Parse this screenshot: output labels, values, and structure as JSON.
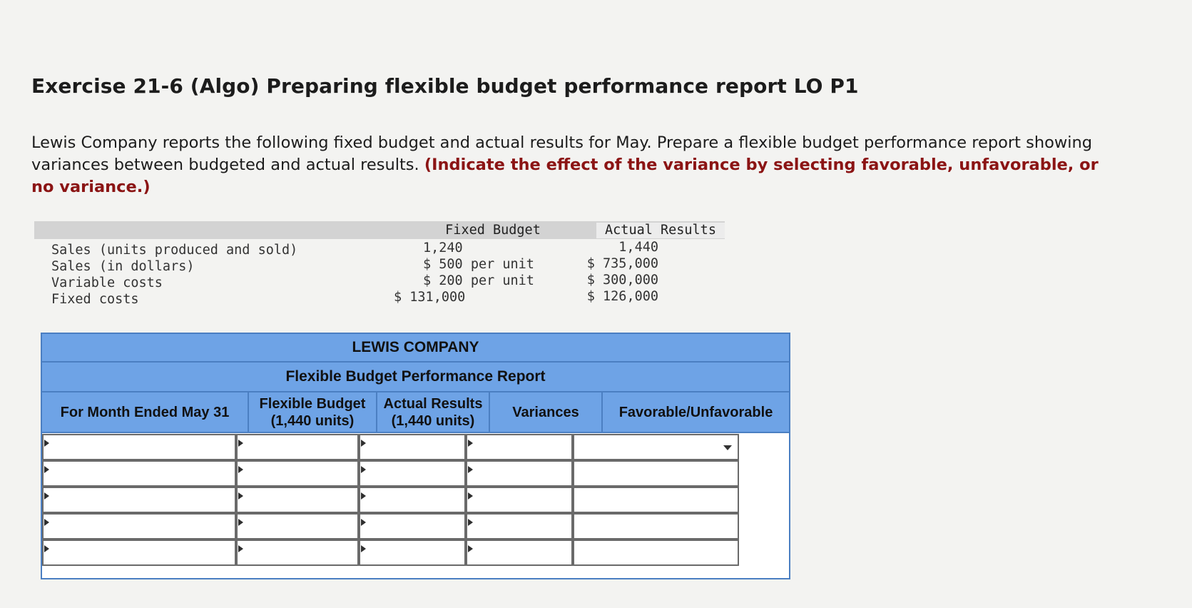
{
  "title": "Exercise 21-6 (Algo) Preparing flexible budget performance report LO P1",
  "instructions": {
    "text": "Lewis Company reports the following fixed budget and actual results for May. Prepare a flexible budget performance report showing variances between budgeted and actual results. ",
    "emphasis": "(Indicate the effect of the variance by selecting favorable, unfavorable, or no variance.)"
  },
  "given": {
    "headers": {
      "fixed": "Fixed Budget",
      "actual": "Actual Results"
    },
    "rows": [
      {
        "label": "Sales (units produced and sold)",
        "fixed": "1,240",
        "actual": "1,440"
      },
      {
        "label": "Sales (in dollars)",
        "fixed": "$ 500 per unit",
        "actual": "$ 735,000"
      },
      {
        "label": "Variable costs",
        "fixed": "$ 200 per unit",
        "actual": "$ 300,000"
      },
      {
        "label": "Fixed costs",
        "fixed": "$ 131,000",
        "actual": "$ 126,000"
      }
    ]
  },
  "report": {
    "company": "LEWIS COMPANY",
    "report_title": "Flexible Budget Performance Report",
    "columns": {
      "period": "For Month Ended May 31",
      "flex_line1": "Flexible Budget",
      "flex_line2": "(1,440 units)",
      "actual_line1": "Actual Results",
      "actual_line2": "(1,440 units)",
      "variances": "Variances",
      "fav": "Favorable/Unfavorable"
    },
    "row_count": 5
  }
}
